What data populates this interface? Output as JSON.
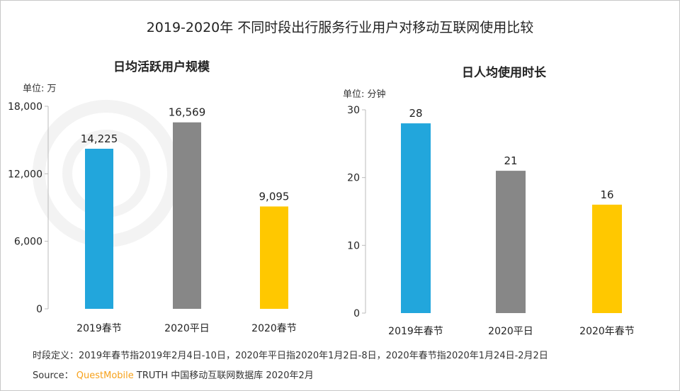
{
  "title": "2019-2020年 不同时段出行服务行业用户对移动互联网使用比较",
  "watermark": "QUESTMOBILE",
  "chart_data": [
    {
      "type": "bar",
      "title": "日均活跃用户规模",
      "unit": "单位: 万",
      "categories": [
        "2019春节",
        "2020平日",
        "2020春节"
      ],
      "values": [
        14225,
        16569,
        9095
      ],
      "labels": [
        "14,225",
        "16,569",
        "9,095"
      ],
      "colors": [
        "#22a6dc",
        "#878787",
        "#ffc800"
      ],
      "ylim": [
        0,
        18000
      ],
      "yticks": [
        0,
        6000,
        12000,
        18000
      ],
      "ytick_labels": [
        "0",
        "6,000",
        "12,000",
        "18,000"
      ],
      "grid": false
    },
    {
      "type": "bar",
      "title": "日人均使用时长",
      "unit": "单位: 分钟",
      "categories": [
        "2019年春节",
        "2020平日",
        "2020年春节"
      ],
      "values": [
        28,
        21,
        16
      ],
      "labels": [
        "28",
        "21",
        "16"
      ],
      "colors": [
        "#22a6dc",
        "#878787",
        "#ffc800"
      ],
      "ylim": [
        0,
        30
      ],
      "yticks": [
        0,
        10,
        20,
        30
      ],
      "ytick_labels": [
        "0",
        "10",
        "20",
        "30"
      ],
      "grid": false
    }
  ],
  "footer": {
    "definition": "时段定义：2019年春节指2019年2月4日-10日，2020年平日指2020年1月2日-8日，2020年春节指2020年1月24日-2月2日",
    "source_label": "Source：",
    "source_brand": "QuestMobile",
    "source_text": "TRUTH 中国移动互联网数据库 2020年2月"
  }
}
